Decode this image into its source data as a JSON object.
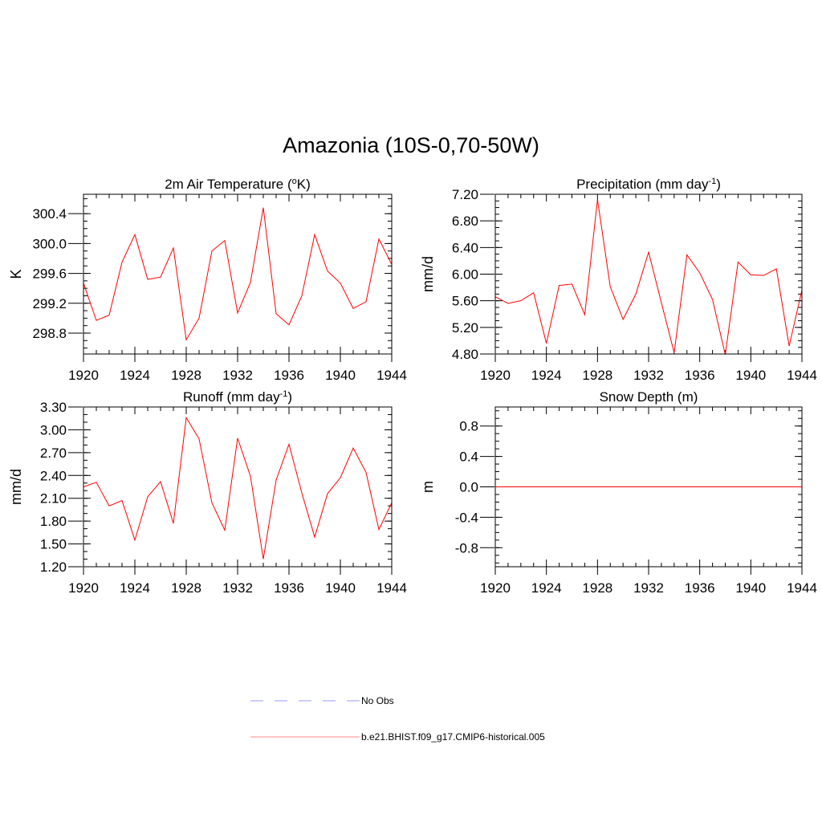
{
  "figure": {
    "title": "Amazonia (10S-0,70-50W)",
    "legend": [
      {
        "label": "No Obs",
        "color": "#9999ff",
        "dash": "dashed"
      },
      {
        "label": "b.e21.BHIST.f09_g17.CMIP6-historical.005",
        "color": "#ff8888",
        "dash": "solid"
      }
    ]
  },
  "chart_data": [
    {
      "type": "line",
      "title": "2m Air Temperature (",
      "title_sup": "o",
      "title_suffix": "K)",
      "ylabel": "K",
      "xlim": [
        1920,
        1944
      ],
      "ylim": [
        298.52,
        300.66
      ],
      "xticks": [
        1920,
        1924,
        1928,
        1932,
        1936,
        1940,
        1944
      ],
      "yticks": [
        298.8,
        299.2,
        299.6,
        300.0,
        300.4
      ],
      "ytick_labels": [
        "298.8",
        "299.2",
        "299.6",
        "300.0",
        "300.4"
      ],
      "yminor": 0.1,
      "x": [
        1920,
        1921,
        1922,
        1923,
        1924,
        1925,
        1926,
        1927,
        1928,
        1929,
        1930,
        1931,
        1932,
        1933,
        1934,
        1935,
        1936,
        1937,
        1938,
        1939,
        1940,
        1941,
        1942,
        1943,
        1944
      ],
      "series": [
        {
          "name": "b.e21.BHIST.f09_g17.CMIP6-historical.005",
          "color": "#ff0000",
          "values": [
            299.47,
            298.97,
            299.04,
            299.75,
            300.12,
            299.52,
            299.55,
            299.94,
            298.71,
            299.0,
            299.9,
            300.04,
            299.07,
            299.48,
            300.48,
            299.06,
            298.91,
            299.3,
            300.12,
            299.63,
            299.47,
            299.13,
            299.22,
            300.06,
            299.72
          ]
        }
      ]
    },
    {
      "type": "line",
      "title": "Precipitation (mm day",
      "title_sup": "-1",
      "title_suffix": ")",
      "ylabel": "mm/d",
      "xlim": [
        1920,
        1944
      ],
      "ylim": [
        4.8,
        7.2
      ],
      "xticks": [
        1920,
        1924,
        1928,
        1932,
        1936,
        1940,
        1944
      ],
      "yticks": [
        4.8,
        5.2,
        5.6,
        6.0,
        6.4,
        6.8,
        7.2
      ],
      "ytick_labels": [
        "4.80",
        "5.20",
        "5.60",
        "6.00",
        "6.40",
        "6.80",
        "7.20"
      ],
      "yminor": 0.1,
      "x": [
        1920,
        1921,
        1922,
        1923,
        1924,
        1925,
        1926,
        1927,
        1928,
        1929,
        1930,
        1931,
        1932,
        1933,
        1934,
        1935,
        1936,
        1937,
        1938,
        1939,
        1940,
        1941,
        1942,
        1943,
        1944
      ],
      "series": [
        {
          "name": "b.e21.BHIST.f09_g17.CMIP6-historical.005",
          "color": "#ff0000",
          "values": [
            5.66,
            5.56,
            5.6,
            5.72,
            4.96,
            5.83,
            5.85,
            5.39,
            7.12,
            5.81,
            5.32,
            5.7,
            6.33,
            5.57,
            4.82,
            6.29,
            6.02,
            5.62,
            4.79,
            6.18,
            5.99,
            5.98,
            6.08,
            4.92,
            5.76
          ]
        }
      ]
    },
    {
      "type": "line",
      "title": "Runoff (mm day",
      "title_sup": "-1",
      "title_suffix": ")",
      "ylabel": "mm/d",
      "xlim": [
        1920,
        1944
      ],
      "ylim": [
        1.2,
        3.3
      ],
      "xticks": [
        1920,
        1924,
        1928,
        1932,
        1936,
        1940,
        1944
      ],
      "yticks": [
        1.2,
        1.5,
        1.8,
        2.1,
        2.4,
        2.7,
        3.0,
        3.3
      ],
      "ytick_labels": [
        "1.20",
        "1.50",
        "1.80",
        "2.10",
        "2.40",
        "2.70",
        "3.00",
        "3.30"
      ],
      "yminor": 0.1,
      "x": [
        1920,
        1921,
        1922,
        1923,
        1924,
        1925,
        1926,
        1927,
        1928,
        1929,
        1930,
        1931,
        1932,
        1933,
        1934,
        1935,
        1936,
        1937,
        1938,
        1939,
        1940,
        1941,
        1942,
        1943,
        1944
      ],
      "series": [
        {
          "name": "b.e21.BHIST.f09_g17.CMIP6-historical.005",
          "color": "#ff0000",
          "values": [
            2.25,
            2.31,
            2.0,
            2.07,
            1.55,
            2.12,
            2.32,
            1.77,
            3.16,
            2.88,
            2.04,
            1.68,
            2.89,
            2.39,
            1.3,
            2.34,
            2.81,
            2.17,
            1.59,
            2.16,
            2.37,
            2.76,
            2.44,
            1.69,
            2.04
          ]
        }
      ]
    },
    {
      "type": "line",
      "title": "Snow Depth (m)",
      "title_sup": "",
      "title_suffix": "",
      "ylabel": "m",
      "xlim": [
        1920,
        1944
      ],
      "ylim": [
        -1.05,
        1.05
      ],
      "xticks": [
        1920,
        1924,
        1928,
        1932,
        1936,
        1940,
        1944
      ],
      "yticks": [
        -0.8,
        -0.4,
        0.0,
        0.4,
        0.8
      ],
      "ytick_labels": [
        "-0.8",
        "-0.4",
        "0.0",
        "0.4",
        "0.8"
      ],
      "yminor": 0.1,
      "x": [
        1920,
        1921,
        1922,
        1923,
        1924,
        1925,
        1926,
        1927,
        1928,
        1929,
        1930,
        1931,
        1932,
        1933,
        1934,
        1935,
        1936,
        1937,
        1938,
        1939,
        1940,
        1941,
        1942,
        1943,
        1944
      ],
      "series": [
        {
          "name": "b.e21.BHIST.f09_g17.CMIP6-historical.005",
          "color": "#ff0000",
          "values": [
            0,
            0,
            0,
            0,
            0,
            0,
            0,
            0,
            0,
            0,
            0,
            0,
            0,
            0,
            0,
            0,
            0,
            0,
            0,
            0,
            0,
            0,
            0,
            0,
            0
          ]
        }
      ]
    }
  ]
}
